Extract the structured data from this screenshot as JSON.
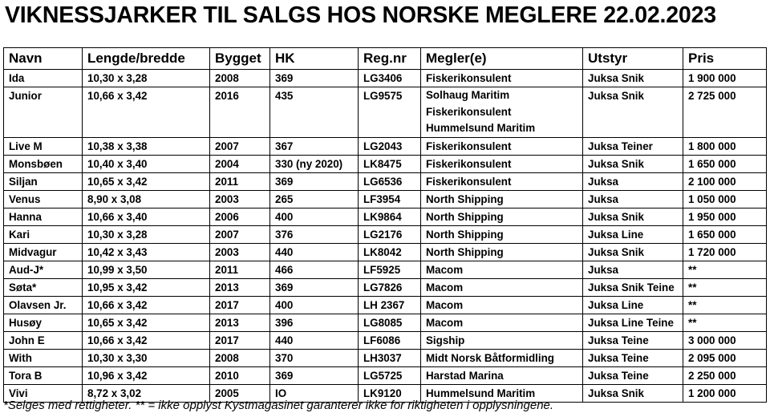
{
  "title": "VIKNESSJARKER TIL SALGS HOS NORSKE MEGLERE 22.02.2023",
  "table": {
    "headers": [
      "Navn",
      "Lengde/bredde",
      "Bygget",
      "HK",
      "Reg.nr",
      "Megler(e)",
      "Utstyr",
      "Pris"
    ],
    "rows": [
      [
        "Ida",
        "10,30 x 3,28",
        "2008",
        "369",
        "LG3406",
        "Fiskerikonsulent",
        "Juksa Snik",
        "1 900 000"
      ],
      [
        "Junior",
        "10,66 x 3,42",
        "2016",
        "435",
        "LG9575",
        "Solhaug Maritim\nFiskerikonsulent\nHummelsund Maritim",
        "Juksa Snik",
        "2 725 000"
      ],
      [
        "Live M",
        "10,38 x 3,38",
        "2007",
        "367",
        "LG2043",
        "Fiskerikonsulent",
        "Juksa Teiner",
        "1 800 000"
      ],
      [
        "Monsbøen",
        "10,40 x 3,40",
        "2004",
        "330 (ny 2020)",
        "LK8475",
        "Fiskerikonsulent",
        "Juksa Snik",
        "1 650 000"
      ],
      [
        "Siljan",
        "10,65 x 3,42",
        "2011",
        "369",
        "LG6536",
        "Fiskerikonsulent",
        "Juksa",
        "2 100 000"
      ],
      [
        "Venus",
        "8,90 x 3,08",
        "2003",
        "265",
        "LF3954",
        "North Shipping",
        "Juksa",
        "1 050 000"
      ],
      [
        "Hanna",
        "10,66 x 3,40",
        "2006",
        "400",
        "LK9864",
        "North Shipping",
        "Juksa Snik",
        "1 950 000"
      ],
      [
        "Kari",
        "10,30 x 3,28",
        "2007",
        "376",
        "LG2176",
        "North Shipping",
        "Juksa Line",
        "1 650 000"
      ],
      [
        "Midvagur",
        "10,42 x 3,43",
        "2003",
        "440",
        "LK8042",
        "North Shipping",
        "Juksa Snik",
        "1 720 000"
      ],
      [
        "Aud-J*",
        "10,99 x 3,50",
        "2011",
        "466",
        "LF5925",
        "Macom",
        "Juksa",
        "**"
      ],
      [
        "Søta*",
        "10,95 x 3,42",
        "2013",
        "369",
        "LG7826",
        "Macom",
        "Juksa Snik Teine",
        "**"
      ],
      [
        "Olavsen Jr.",
        "10,66 x 3,42",
        "2017",
        "400",
        "LH 2367",
        "Macom",
        "Juksa Line",
        "**"
      ],
      [
        "Husøy",
        "10,65 x 3,42",
        "2013",
        "396",
        "LG8085",
        "Macom",
        "Juksa Line Teine",
        "**"
      ],
      [
        "John E",
        "10,66 x 3,42",
        "2017",
        "440",
        "LF6086",
        "Sigship",
        "Juksa Teine",
        "3 000 000"
      ],
      [
        "With",
        "10,30 x 3,30",
        "2008",
        "370",
        "LH3037",
        "Midt Norsk Båtformidling",
        "Juksa Teine",
        "2 095 000"
      ],
      [
        "Tora B",
        "10,96 x 3,42",
        "2010",
        "369",
        "LG5725",
        "Harstad Marina",
        "Juksa Teine",
        "2 250 000"
      ],
      [
        "Vivi",
        "8,72 x 3,02",
        "2005",
        "IO",
        "LK9120",
        "Hummelsund Maritim",
        "Juksa Snik",
        "1 200 000"
      ]
    ]
  },
  "footnote": "*Selges med rettigheter. ** = ikke opplyst Kystmagasinet garanterer ikke for riktigheten i opplysningene."
}
